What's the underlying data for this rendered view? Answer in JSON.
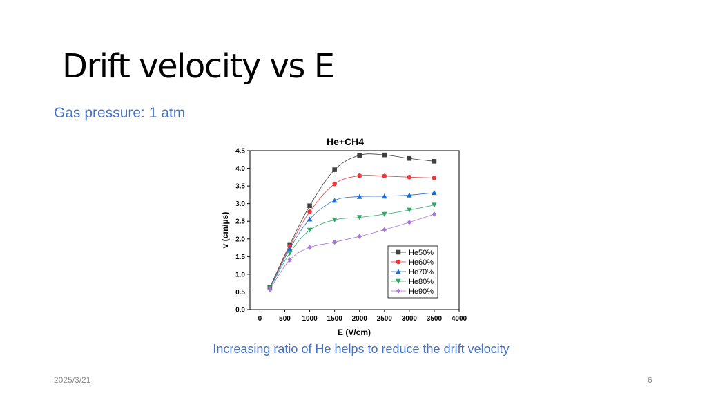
{
  "slide": {
    "title": "Drift velocity vs E",
    "subtitle": "Gas pressure: 1 atm",
    "caption": "Increasing ratio of He helps to reduce the drift velocity",
    "date": "2025/3/21",
    "page_number": "6"
  },
  "chart_data": {
    "type": "line",
    "title": "He+CH4",
    "xlabel": "E (V/cm)",
    "ylabel": "v (cm/μs)",
    "xlim": [
      -200,
      4000
    ],
    "ylim": [
      0,
      4.5
    ],
    "xticks": [
      0,
      500,
      1000,
      1500,
      2000,
      2500,
      3000,
      3500,
      4000
    ],
    "yticks": [
      "0.0",
      "0.5",
      "1.0",
      "1.5",
      "2.0",
      "2.5",
      "3.0",
      "3.5",
      "4.0",
      "4.5"
    ],
    "legend_position": "bottom-right",
    "x": [
      200,
      600,
      1000,
      1500,
      2000,
      2500,
      3000,
      3500
    ],
    "series": [
      {
        "name": "He50%",
        "color": "#404040",
        "marker": "square",
        "values": [
          0.63,
          1.84,
          2.94,
          3.96,
          4.37,
          4.38,
          4.28,
          4.2
        ]
      },
      {
        "name": "He60%",
        "color": "#E8383D",
        "marker": "circle",
        "values": [
          0.62,
          1.79,
          2.77,
          3.56,
          3.79,
          3.78,
          3.75,
          3.73
        ]
      },
      {
        "name": "He70%",
        "color": "#1F6FD0",
        "marker": "triangle-up",
        "values": [
          0.61,
          1.72,
          2.56,
          3.09,
          3.2,
          3.21,
          3.24,
          3.31
        ]
      },
      {
        "name": "He80%",
        "color": "#2FA86A",
        "marker": "triangle-down",
        "values": [
          0.6,
          1.6,
          2.25,
          2.54,
          2.61,
          2.7,
          2.82,
          2.96
        ]
      },
      {
        "name": "He90%",
        "color": "#A774D8",
        "marker": "diamond",
        "values": [
          0.57,
          1.41,
          1.76,
          1.91,
          2.07,
          2.26,
          2.47,
          2.7
        ]
      }
    ]
  }
}
